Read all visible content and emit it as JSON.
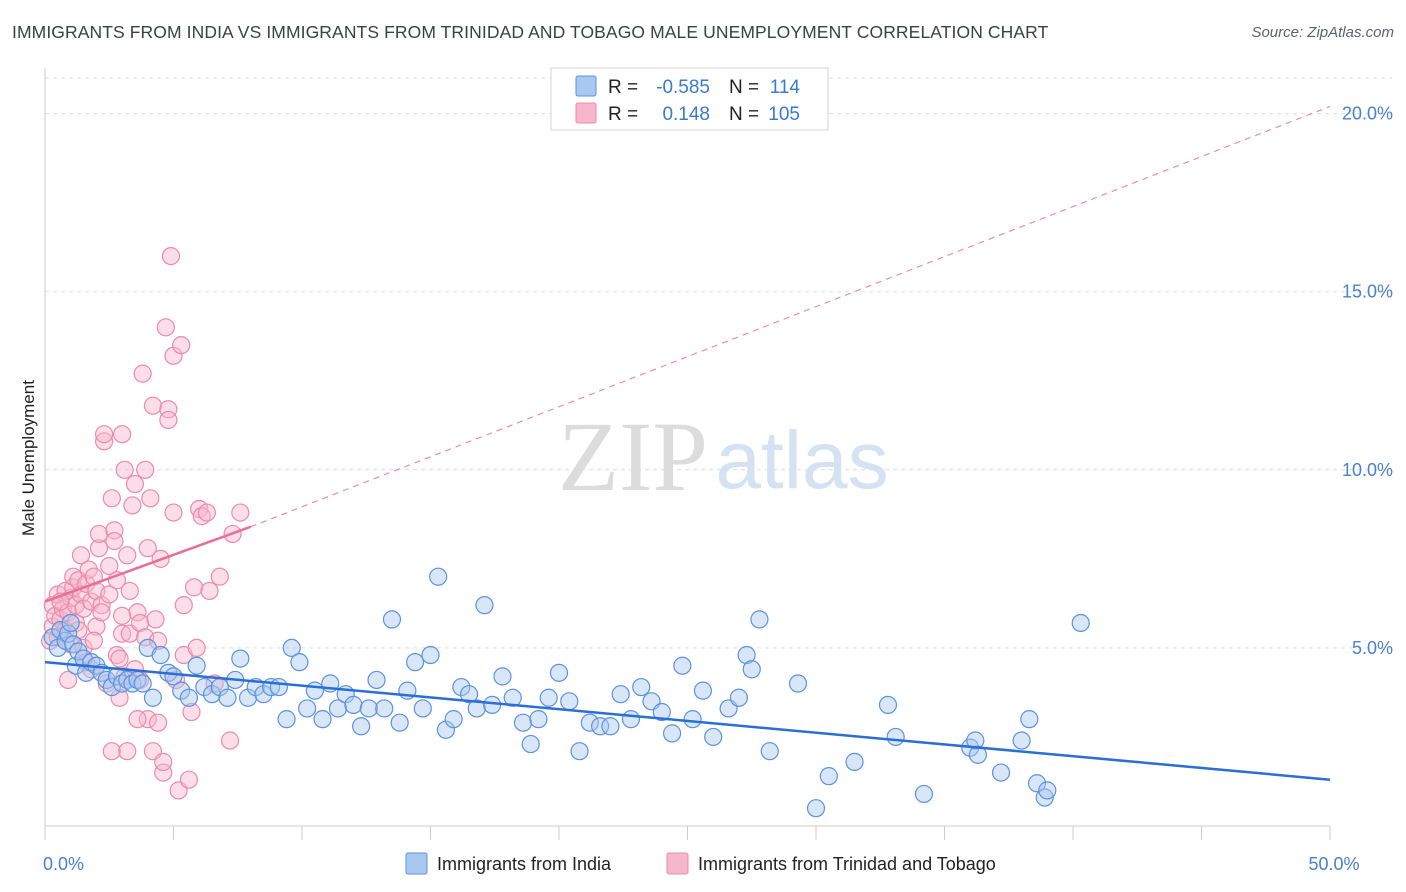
{
  "title": "IMMIGRANTS FROM INDIA VS IMMIGRANTS FROM TRINIDAD AND TOBAGO MALE UNEMPLOYMENT CORRELATION CHART",
  "source": "Source: ZipAtlas.com",
  "watermark": {
    "zip": "ZIP",
    "atlas": "atlas"
  },
  "colors": {
    "india_fill": "#a8c8f0",
    "india_stroke": "#5b93e0",
    "india_line": "#2a6fd6",
    "tt_fill": "#f6b6cb",
    "tt_stroke": "#ec8aab",
    "tt_line": "#e86f97",
    "tick_text": "#4a7fd1",
    "grid": "#d9dde3"
  },
  "legend": {
    "rows": [
      {
        "r_label": "R =",
        "r_value": "-0.585",
        "n_label": "N =",
        "n_value": "114"
      },
      {
        "r_label": "R =",
        "r_value": "0.148",
        "n_label": "N =",
        "n_value": "105"
      }
    ]
  },
  "bottom_legend": {
    "india": "Immigrants from India",
    "tt": "Immigrants from Trinidad and Tobago"
  },
  "chart_data": {
    "type": "scatter",
    "title": "IMMIGRANTS FROM INDIA VS IMMIGRANTS FROM TRINIDAD AND TOBAGO MALE UNEMPLOYMENT CORRELATION CHART",
    "xlabel": "",
    "ylabel": "Male Unemployment",
    "xlim": [
      0,
      50
    ],
    "ylim": [
      0,
      21
    ],
    "x_tick_labels": [
      "0.0%",
      "50.0%"
    ],
    "y_ticks": [
      5,
      10,
      15,
      20
    ],
    "y_tick_labels": [
      "5.0%",
      "10.0%",
      "15.0%",
      "20.0%"
    ],
    "grid": true,
    "legend_position": "top-center",
    "series": [
      {
        "name": "Immigrants from India",
        "R": -0.585,
        "N": 114,
        "trend": {
          "x": [
            0,
            50
          ],
          "y": [
            4.6,
            1.3
          ]
        },
        "points": [
          [
            0.3,
            5.3
          ],
          [
            0.5,
            5.0
          ],
          [
            0.6,
            5.5
          ],
          [
            0.8,
            5.2
          ],
          [
            0.9,
            5.4
          ],
          [
            1.0,
            5.7
          ],
          [
            1.1,
            5.1
          ],
          [
            1.2,
            4.5
          ],
          [
            1.3,
            4.9
          ],
          [
            1.5,
            4.7
          ],
          [
            1.6,
            4.3
          ],
          [
            1.8,
            4.6
          ],
          [
            2.0,
            4.5
          ],
          [
            2.2,
            4.3
          ],
          [
            2.4,
            4.1
          ],
          [
            2.6,
            3.9
          ],
          [
            2.8,
            4.2
          ],
          [
            3.0,
            4.0
          ],
          [
            3.2,
            4.1
          ],
          [
            3.4,
            4.0
          ],
          [
            3.6,
            4.1
          ],
          [
            3.8,
            4.0
          ],
          [
            4.0,
            5.0
          ],
          [
            4.2,
            3.6
          ],
          [
            4.5,
            4.8
          ],
          [
            4.8,
            4.3
          ],
          [
            5.0,
            4.2
          ],
          [
            5.3,
            3.8
          ],
          [
            5.6,
            3.6
          ],
          [
            5.9,
            4.5
          ],
          [
            6.2,
            3.9
          ],
          [
            6.5,
            3.7
          ],
          [
            6.8,
            3.9
          ],
          [
            7.1,
            3.6
          ],
          [
            7.4,
            4.1
          ],
          [
            7.6,
            4.7
          ],
          [
            7.9,
            3.6
          ],
          [
            8.2,
            3.9
          ],
          [
            8.5,
            3.7
          ],
          [
            8.8,
            3.9
          ],
          [
            9.1,
            3.9
          ],
          [
            9.4,
            3.0
          ],
          [
            9.6,
            5.0
          ],
          [
            9.9,
            4.6
          ],
          [
            10.2,
            3.3
          ],
          [
            10.5,
            3.8
          ],
          [
            10.8,
            3.0
          ],
          [
            11.1,
            4.0
          ],
          [
            11.4,
            3.3
          ],
          [
            11.7,
            3.7
          ],
          [
            12.0,
            3.4
          ],
          [
            12.3,
            2.8
          ],
          [
            12.6,
            3.3
          ],
          [
            12.9,
            4.1
          ],
          [
            13.2,
            3.3
          ],
          [
            13.5,
            5.8
          ],
          [
            13.8,
            2.9
          ],
          [
            14.1,
            3.8
          ],
          [
            14.4,
            4.6
          ],
          [
            14.7,
            3.3
          ],
          [
            15.0,
            4.8
          ],
          [
            15.3,
            7.0
          ],
          [
            15.6,
            2.7
          ],
          [
            15.9,
            3.0
          ],
          [
            16.2,
            3.9
          ],
          [
            16.5,
            3.7
          ],
          [
            16.8,
            3.3
          ],
          [
            17.1,
            6.2
          ],
          [
            17.4,
            3.4
          ],
          [
            17.8,
            4.2
          ],
          [
            18.2,
            3.6
          ],
          [
            18.6,
            2.9
          ],
          [
            18.9,
            2.3
          ],
          [
            19.2,
            3.0
          ],
          [
            19.6,
            3.6
          ],
          [
            20.0,
            4.3
          ],
          [
            20.4,
            3.5
          ],
          [
            20.8,
            2.1
          ],
          [
            21.2,
            2.9
          ],
          [
            21.6,
            2.8
          ],
          [
            22.0,
            2.8
          ],
          [
            22.4,
            3.7
          ],
          [
            22.8,
            3.0
          ],
          [
            23.2,
            3.9
          ],
          [
            23.6,
            3.5
          ],
          [
            24.0,
            3.2
          ],
          [
            24.4,
            2.6
          ],
          [
            24.8,
            4.5
          ],
          [
            25.2,
            3.0
          ],
          [
            25.6,
            3.8
          ],
          [
            26.0,
            2.5
          ],
          [
            26.6,
            3.3
          ],
          [
            27.0,
            3.6
          ],
          [
            27.3,
            4.8
          ],
          [
            27.5,
            4.4
          ],
          [
            27.8,
            5.8
          ],
          [
            28.2,
            2.1
          ],
          [
            29.3,
            4.0
          ],
          [
            30.0,
            0.5
          ],
          [
            30.5,
            1.4
          ],
          [
            31.5,
            1.8
          ],
          [
            32.8,
            3.4
          ],
          [
            33.1,
            2.5
          ],
          [
            34.2,
            0.9
          ],
          [
            36.0,
            2.2
          ],
          [
            36.2,
            2.4
          ],
          [
            36.3,
            2.0
          ],
          [
            37.2,
            1.5
          ],
          [
            38.0,
            2.4
          ],
          [
            38.3,
            3.0
          ],
          [
            38.6,
            1.2
          ],
          [
            38.9,
            0.8
          ],
          [
            40.3,
            5.7
          ],
          [
            39.0,
            1.0
          ]
        ]
      },
      {
        "name": "Immigrants from Trinidad and Tobago",
        "R": 0.148,
        "N": 105,
        "trend": {
          "x": [
            0,
            8
          ],
          "y": [
            6.3,
            8.4
          ]
        },
        "trend_dashed": {
          "x": [
            8,
            50
          ],
          "y": [
            8.4,
            20.2
          ]
        },
        "points": [
          [
            0.2,
            5.2
          ],
          [
            0.3,
            5.6
          ],
          [
            0.3,
            6.2
          ],
          [
            0.4,
            5.9
          ],
          [
            0.5,
            6.5
          ],
          [
            0.5,
            5.3
          ],
          [
            0.6,
            5.8
          ],
          [
            0.7,
            6.1
          ],
          [
            0.8,
            6.6
          ],
          [
            0.8,
            5.5
          ],
          [
            0.9,
            6.0
          ],
          [
            1.0,
            6.4
          ],
          [
            1.0,
            5.1
          ],
          [
            1.1,
            6.7
          ],
          [
            1.1,
            7.0
          ],
          [
            1.2,
            5.7
          ],
          [
            1.2,
            6.2
          ],
          [
            1.3,
            6.9
          ],
          [
            1.4,
            6.5
          ],
          [
            1.4,
            7.6
          ],
          [
            1.5,
            6.1
          ],
          [
            1.5,
            5.0
          ],
          [
            1.6,
            6.8
          ],
          [
            1.7,
            7.2
          ],
          [
            1.8,
            6.3
          ],
          [
            1.8,
            4.4
          ],
          [
            1.9,
            7.0
          ],
          [
            2.0,
            5.6
          ],
          [
            2.0,
            6.6
          ],
          [
            2.1,
            7.8
          ],
          [
            2.1,
            8.2
          ],
          [
            2.2,
            6.2
          ],
          [
            2.3,
            10.8
          ],
          [
            2.3,
            11.0
          ],
          [
            2.4,
            4.0
          ],
          [
            2.5,
            7.3
          ],
          [
            2.5,
            6.5
          ],
          [
            2.6,
            9.2
          ],
          [
            2.7,
            8.3
          ],
          [
            2.7,
            8.0
          ],
          [
            2.8,
            6.9
          ],
          [
            2.8,
            4.8
          ],
          [
            2.9,
            3.6
          ],
          [
            3.0,
            11.0
          ],
          [
            3.0,
            5.4
          ],
          [
            3.1,
            4.2
          ],
          [
            3.1,
            10.0
          ],
          [
            3.2,
            7.6
          ],
          [
            3.3,
            5.4
          ],
          [
            3.3,
            6.6
          ],
          [
            3.4,
            9.0
          ],
          [
            3.5,
            9.6
          ],
          [
            3.5,
            4.4
          ],
          [
            3.6,
            6.0
          ],
          [
            3.7,
            5.7
          ],
          [
            3.7,
            4.1
          ],
          [
            3.8,
            12.7
          ],
          [
            3.9,
            10.0
          ],
          [
            3.9,
            5.3
          ],
          [
            4.0,
            7.8
          ],
          [
            4.0,
            3.0
          ],
          [
            4.1,
            9.2
          ],
          [
            4.2,
            11.8
          ],
          [
            4.2,
            2.1
          ],
          [
            4.3,
            5.8
          ],
          [
            4.4,
            5.2
          ],
          [
            4.5,
            7.5
          ],
          [
            4.6,
            1.5
          ],
          [
            4.6,
            1.8
          ],
          [
            4.7,
            14.0
          ],
          [
            4.8,
            11.7
          ],
          [
            4.8,
            11.4
          ],
          [
            4.9,
            16.0
          ],
          [
            5.0,
            13.2
          ],
          [
            5.0,
            8.8
          ],
          [
            5.1,
            4.1
          ],
          [
            5.2,
            1.0
          ],
          [
            5.3,
            13.5
          ],
          [
            5.4,
            6.2
          ],
          [
            5.4,
            4.8
          ],
          [
            5.6,
            1.3
          ],
          [
            5.7,
            3.2
          ],
          [
            5.8,
            6.7
          ],
          [
            5.9,
            5.0
          ],
          [
            6.0,
            8.9
          ],
          [
            6.1,
            8.7
          ],
          [
            6.3,
            8.8
          ],
          [
            6.4,
            6.6
          ],
          [
            6.6,
            4.0
          ],
          [
            6.8,
            7.0
          ],
          [
            7.2,
            2.4
          ],
          [
            7.3,
            8.2
          ],
          [
            7.6,
            8.8
          ],
          [
            2.6,
            2.1
          ],
          [
            3.2,
            2.1
          ],
          [
            1.6,
            4.6
          ],
          [
            0.9,
            4.1
          ],
          [
            4.4,
            2.9
          ],
          [
            3.0,
            5.9
          ],
          [
            1.3,
            5.5
          ],
          [
            2.2,
            6.0
          ],
          [
            0.6,
            6.3
          ],
          [
            1.9,
            5.2
          ],
          [
            2.9,
            4.7
          ],
          [
            3.6,
            3.0
          ]
        ]
      }
    ]
  }
}
